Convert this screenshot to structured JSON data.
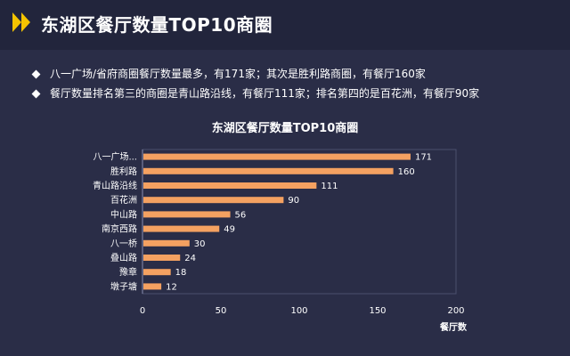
{
  "header": {
    "title": "东湖区餐厅数量TOP10商圈",
    "icon": "double-chevron-right-icon",
    "accent": "#f5c400"
  },
  "bullets": [
    "八一广场/省府商圈餐厅数量最多，有171家；其次是胜利路商圈，有餐厅160家",
    "餐厅数量排名第三的商圈是青山路沿线，有餐厅111家；排名第四的是百花洲，有餐厅90家"
  ],
  "chart_data": {
    "type": "bar",
    "orientation": "horizontal",
    "title": "东湖区餐厅数量TOP10商圈",
    "categories": [
      "八一广场...",
      "胜利路",
      "青山路沿线",
      "百花洲",
      "中山路",
      "南京西路",
      "八一桥",
      "叠山路",
      "豫章",
      "墩子塘"
    ],
    "values": [
      171,
      160,
      111,
      90,
      56,
      49,
      30,
      24,
      18,
      12
    ],
    "xlabel": "餐厅数",
    "ylabel": "",
    "xlim": [
      0,
      200
    ],
    "xticks": [
      0,
      50,
      100,
      150,
      200
    ],
    "grid": false,
    "bar_color": "#f4a161"
  }
}
